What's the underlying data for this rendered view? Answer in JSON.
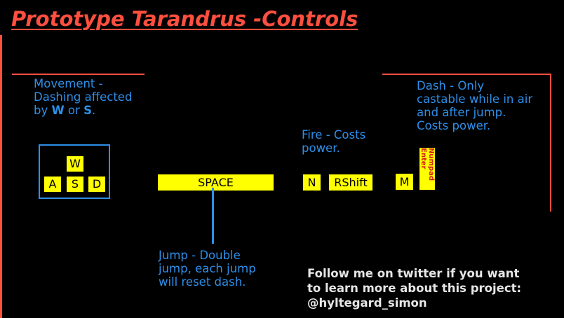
{
  "title": "Prototype Tarandrus -Controls",
  "movement": {
    "line1": "Movement -",
    "line2": "Dashing affected",
    "by": "by ",
    "w": "W",
    "or": " or ",
    "s": "S",
    "period": "."
  },
  "keys": {
    "w": "W",
    "a": "A",
    "s": "S",
    "d": "D",
    "space": "SPACE",
    "n": "N",
    "rshift": "RShift",
    "m": "M",
    "numpad_enter": "Numpad Enter"
  },
  "jump": {
    "line1": "Jump - Double",
    "line2": "jump, each jump",
    "line3": "will reset dash."
  },
  "fire": {
    "line1": "Fire - Costs",
    "line2": "power."
  },
  "dash": {
    "line1": "Dash - Only",
    "line2": "castable while in air",
    "line3": "and after jump.",
    "line4": "Costs power."
  },
  "follow": {
    "line1": "Follow me on twitter if you want",
    "line2": "to learn more about this project:",
    "line3": "@hyltegard_simon"
  },
  "colors": {
    "accent": "#ff4f3f",
    "blue_text": "#2e8fe8",
    "key_bg": "#ffff00"
  }
}
